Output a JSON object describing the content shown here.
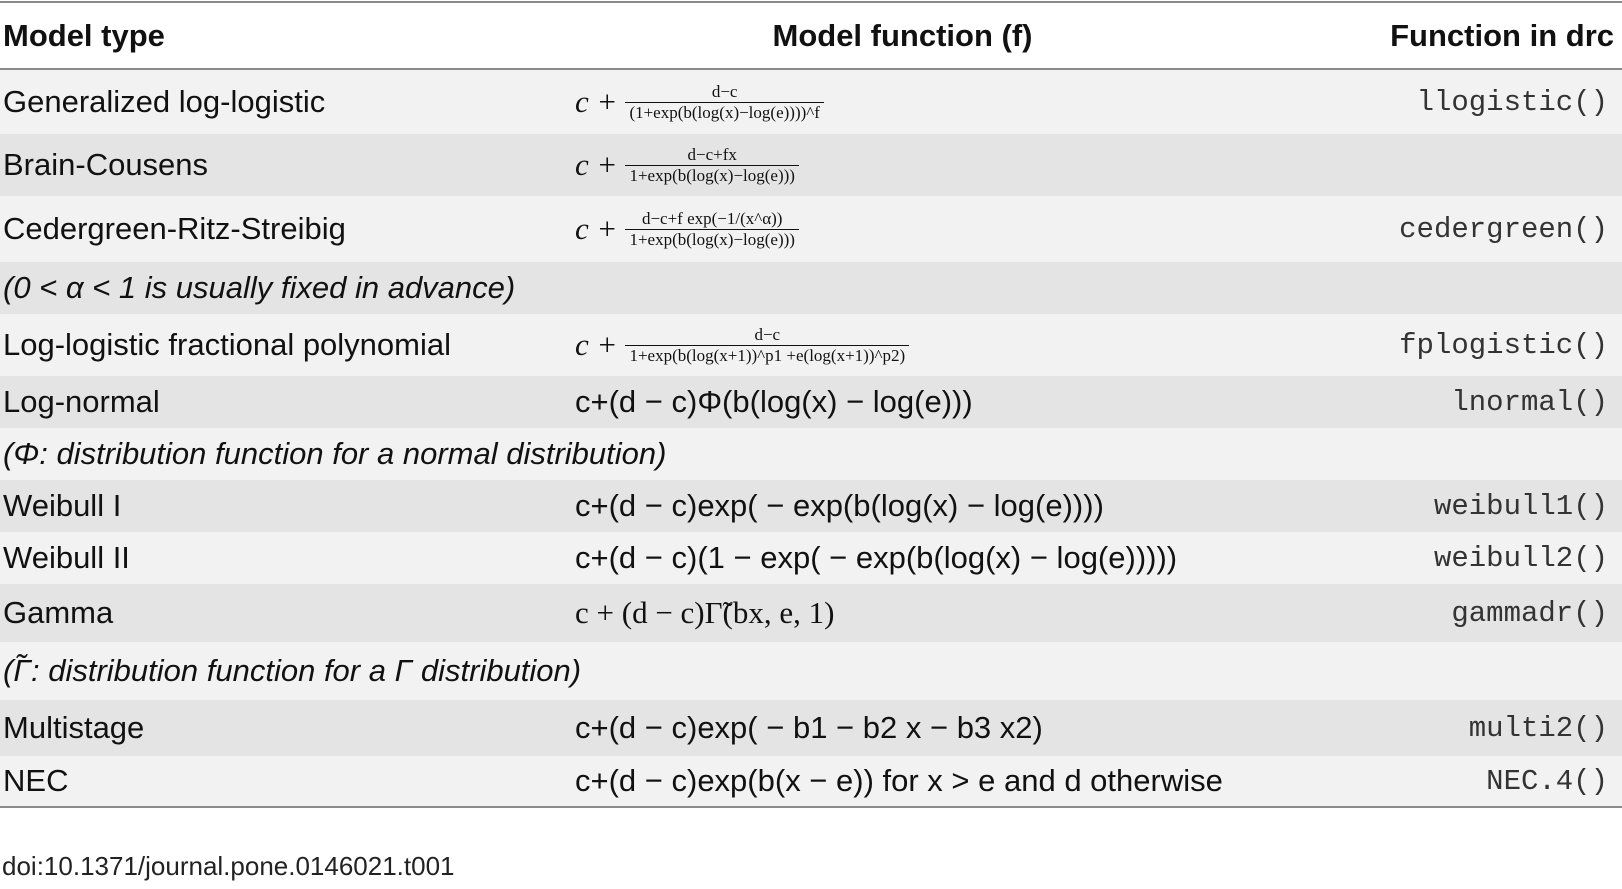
{
  "header": {
    "col_model_type": "Model type",
    "col_model_function": "Model function (f)",
    "col_drc": "Function in drc"
  },
  "rows": [
    {
      "type": "Generalized log-logistic",
      "formula_prefix": "c +",
      "numerator": "d−c",
      "denominator": "(1+exp(b(log(x)−log(e))))^f",
      "drc": "llogistic()"
    },
    {
      "type": "Brain-Cousens",
      "formula_prefix": "c +",
      "numerator": "d−c+fx",
      "denominator": "1+exp(b(log(x)−log(e)))",
      "drc": ""
    },
    {
      "type": "Cedergreen-Ritz-Streibig",
      "formula_prefix": "c +",
      "numerator": "d−c+f exp(−1/(x^α))",
      "denominator": "1+exp(b(log(x)−log(e)))",
      "drc": "cedergreen()"
    },
    {
      "note": "(0 < α < 1 is usually fixed in advance)"
    },
    {
      "type": "Log-logistic fractional polynomial",
      "formula_prefix": "c +",
      "numerator": "d−c",
      "denominator": "1+exp(b(log(x+1))^p1 +e(log(x+1))^p2)",
      "drc": "fplogistic()"
    },
    {
      "type": "Log-normal",
      "formula": "c+(d − c)Φ(b(log(x) − log(e)))",
      "drc": "lnormal()"
    },
    {
      "note": "(Φ: distribution function for a normal distribution)"
    },
    {
      "type": "Weibull I",
      "formula": "c+(d − c)exp( − exp(b(log(x) − log(e))))",
      "drc": "weibull1()"
    },
    {
      "type": "Weibull II",
      "formula": "c+(d − c)(1 − exp( − exp(b(log(x) − log(e)))))",
      "drc": "weibull2()"
    },
    {
      "type": "Gamma",
      "formula": "c + (d − c)Γ̃(bx, e, 1)",
      "drc": "gammadr()"
    },
    {
      "note": "(Γ̃: distribution function for a Γ distribution)"
    },
    {
      "type": "Multistage",
      "formula": "c+(d − c)exp( − b1 − b2 x − b3 x2)",
      "drc": "multi2()"
    },
    {
      "type": "NEC",
      "formula": "c+(d − c)exp(b(x − e)) for x > e and d otherwise",
      "drc": "NEC.4()"
    }
  ],
  "footer": "doi:10.1371/journal.pone.0146021.t001"
}
